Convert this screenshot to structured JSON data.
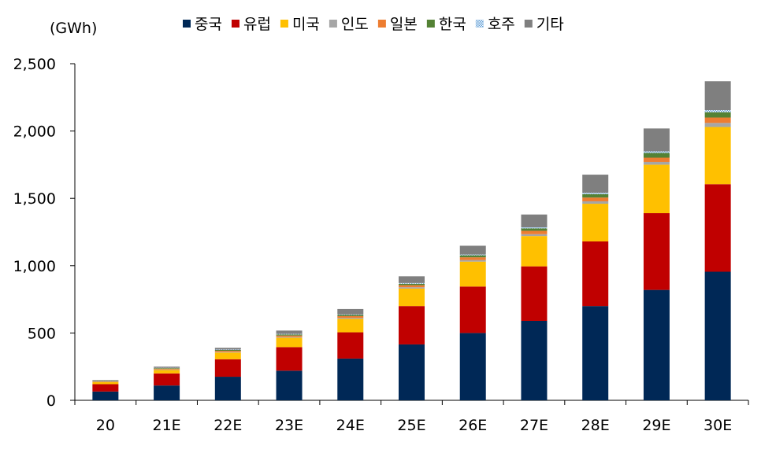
{
  "chart_data": {
    "type": "bar",
    "stacked": true,
    "unit_label": "(GWh)",
    "categories": [
      "20",
      "21E",
      "22E",
      "23E",
      "24E",
      "25E",
      "26E",
      "27E",
      "28E",
      "29E",
      "30E"
    ],
    "ylim": [
      0,
      2500
    ],
    "yticks": [
      0,
      500,
      1000,
      1500,
      2000,
      2500
    ],
    "ytick_labels": [
      "0",
      "500",
      "1,000",
      "1,500",
      "2,000",
      "2,500"
    ],
    "grid": false,
    "legend_position": "top",
    "series": [
      {
        "name": "중국",
        "color": "#002856",
        "values": [
          65,
          110,
          175,
          220,
          310,
          415,
          500,
          590,
          700,
          820,
          955
        ]
      },
      {
        "name": "유럽",
        "color": "#c00000",
        "values": [
          55,
          90,
          130,
          175,
          195,
          285,
          345,
          405,
          480,
          570,
          650
        ]
      },
      {
        "name": "미국",
        "color": "#ffc000",
        "values": [
          15,
          25,
          50,
          70,
          100,
          130,
          185,
          225,
          280,
          360,
          425
        ]
      },
      {
        "name": "인도",
        "color": "#a6a6a6",
        "values": [
          2,
          4,
          5,
          6,
          8,
          10,
          12,
          14,
          18,
          20,
          30
        ]
      },
      {
        "name": "일본",
        "color": "#ed7d31",
        "values": [
          4,
          6,
          8,
          10,
          12,
          15,
          20,
          25,
          28,
          32,
          40
        ]
      },
      {
        "name": "한국",
        "color": "#548235",
        "values": [
          3,
          4,
          6,
          8,
          9,
          11,
          15,
          18,
          25,
          35,
          40
        ]
      },
      {
        "name": "호주",
        "color": "#9dc3e6",
        "values": [
          1,
          2,
          3,
          4,
          4,
          5,
          6,
          8,
          10,
          12,
          15
        ]
      },
      {
        "name": "기타",
        "color": "#7f7f7f",
        "values": [
          5,
          9,
          13,
          25,
          40,
          50,
          65,
          95,
          135,
          170,
          215
        ]
      }
    ]
  }
}
